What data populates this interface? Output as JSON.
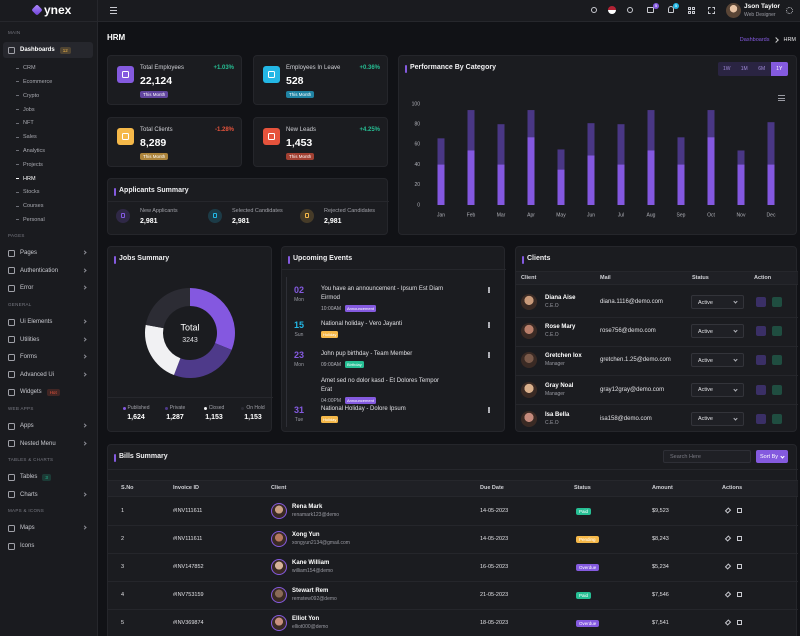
{
  "sidebar": {
    "logo": "ynex",
    "groups": [
      {
        "heading": "MAIN",
        "items": [
          {
            "label": "Dashboards",
            "badge": "12",
            "badge_color": "#f5b849",
            "children": [
              {
                "label": "CRM"
              },
              {
                "label": "Ecommerce"
              },
              {
                "label": "Crypto"
              },
              {
                "label": "Jobs"
              },
              {
                "label": "NFT"
              },
              {
                "label": "Sales"
              },
              {
                "label": "Analytics"
              },
              {
                "label": "Projects"
              },
              {
                "label": "HRM",
                "active": true
              },
              {
                "label": "Stocks"
              },
              {
                "label": "Courses"
              },
              {
                "label": "Personal"
              }
            ]
          }
        ]
      },
      {
        "heading": "PAGES",
        "items": [
          {
            "label": "Pages",
            "submenu": true
          },
          {
            "label": "Authentication",
            "submenu": true
          },
          {
            "label": "Error",
            "submenu": true
          }
        ]
      },
      {
        "heading": "GENERAL",
        "items": [
          {
            "label": "Ui Elements",
            "submenu": true
          },
          {
            "label": "Utilities",
            "submenu": true
          },
          {
            "label": "Forms",
            "submenu": true
          },
          {
            "label": "Advanced Ui",
            "submenu": true
          },
          {
            "label": "Widgets",
            "badge": "Hot",
            "badge_color": "#e6533c"
          }
        ]
      },
      {
        "heading": "WEB APPS",
        "items": [
          {
            "label": "Apps",
            "submenu": true
          },
          {
            "label": "Nested Menu",
            "submenu": true
          }
        ]
      },
      {
        "heading": "TABLES & CHARTS",
        "items": [
          {
            "label": "Tables",
            "badge": "3",
            "badge_color": "#26bf94"
          },
          {
            "label": "Charts",
            "submenu": true
          }
        ]
      },
      {
        "heading": "MAPS & ICONS",
        "items": [
          {
            "label": "Maps",
            "submenu": true
          },
          {
            "label": "Icons"
          }
        ]
      }
    ]
  },
  "header": {
    "user_name": "Json Taylor",
    "user_role": "Web Designer",
    "cart_count": "5",
    "notification_count": "5"
  },
  "page": {
    "title": "HRM",
    "breadcrumb": [
      "Dashboards",
      "HRM"
    ]
  },
  "stats": [
    {
      "title": "Total Employees",
      "value": "22,124",
      "change": "+1.03%",
      "period": "This Month",
      "color": "#845adf"
    },
    {
      "title": "Employees In Leave",
      "value": "528",
      "change": "+0.36%",
      "period": "This Month",
      "color": "#23b7e5"
    },
    {
      "title": "Total Clients",
      "value": "8,289",
      "change": "-1.28%",
      "period": "This Month",
      "color": "#f5b849"
    },
    {
      "title": "New Leads",
      "value": "1,453",
      "change": "+4.25%",
      "period": "This Month",
      "color": "#e6533c"
    }
  ],
  "applicants": {
    "title": "Applicants Summary",
    "items": [
      {
        "label": "New Applicants",
        "value": "2,981",
        "color": "#845adf"
      },
      {
        "label": "Selected Candidates",
        "value": "2,981",
        "color": "#23b7e5"
      },
      {
        "label": "Rejected Candidates",
        "value": "2,981",
        "color": "#f5b849"
      }
    ]
  },
  "chart_data": [
    {
      "type": "bar",
      "title": "Performance By Category",
      "range_buttons": [
        "1W",
        "1M",
        "6M",
        "1Y"
      ],
      "active_range_index": 3,
      "categories": [
        "Jan",
        "Feb",
        "Mar",
        "Apr",
        "May",
        "Jun",
        "Jul",
        "Aug",
        "Sep",
        "Oct",
        "Nov",
        "Dec"
      ],
      "series": [
        {
          "color": "#4a3785",
          "values": [
            66,
            94,
            80,
            94,
            55,
            81,
            80,
            94,
            67,
            94,
            54,
            82
          ]
        },
        {
          "color": "#8458e0",
          "values": [
            40,
            54,
            40,
            67,
            35,
            49,
            40,
            54,
            40,
            67,
            40,
            40
          ]
        }
      ],
      "ylim": [
        0,
        100
      ],
      "yticks": [
        0,
        20,
        40,
        60,
        80,
        100
      ]
    },
    {
      "type": "donut",
      "title": "Jobs Summary",
      "center_label": "Total",
      "center_value": 3243,
      "categories": [
        "Published",
        "Private",
        "Closed",
        "On Hold"
      ],
      "values": [
        1624,
        1287,
        1153,
        1153
      ],
      "value_labels": [
        "1,624",
        "1,287",
        "1,153",
        "1,153"
      ],
      "colors": [
        "#8458e0",
        "#4e3a8a",
        "#f1f1f3",
        "#2c2c34"
      ]
    }
  ],
  "events": {
    "title": "Upcoming Events",
    "items": [
      {
        "day": "02",
        "month": "Mon",
        "color": "#845adf",
        "text": "You have an announcement - Ipsum Est Diam Eirmod",
        "time": "10:00AM",
        "tag": "Announcement",
        "tag_color": "#845adf"
      },
      {
        "day": "15",
        "month": "Sun",
        "color": "#23b7e5",
        "text": "National holiday - Vero Jayanti",
        "tag": "Holiday",
        "tag_color": "#f5b849"
      },
      {
        "day": "23",
        "month": "Mon",
        "color": "#845adf",
        "text": "John pup birthday - Team Member",
        "time": "09:00AM",
        "tag": "Birthday",
        "tag_color": "#26bf94"
      },
      {
        "text": "Amet sed no dolor kasd - Et Dolores Tempor Erat",
        "time": "04:00PM",
        "tag": "Announcement",
        "tag_color": "#845adf"
      },
      {
        "day": "31",
        "month": "Tue",
        "color": "#845adf",
        "text": "National Holiday - Dolore Ipsum",
        "tag": "Holiday",
        "tag_color": "#f5b849"
      }
    ]
  },
  "clients": {
    "title": "Clients",
    "headers": [
      "Client",
      "Mail",
      "Status",
      "Action"
    ],
    "rows": [
      {
        "name": "Diana Aise",
        "role": "C.E.O",
        "mail": "diana.1116@demo.com",
        "status": "Active"
      },
      {
        "name": "Rose Mary",
        "role": "C.E.O",
        "mail": "rose756@demo.com",
        "status": "Active"
      },
      {
        "name": "Gretchen Iox",
        "role": "Manager",
        "mail": "gretchen.1.25@demo.com",
        "status": "Active"
      },
      {
        "name": "Gray Noal",
        "role": "Manager",
        "mail": "gray12gray@demo.com",
        "status": "Active"
      },
      {
        "name": "Isa Bella",
        "role": "C.E.O",
        "mail": "isa158@demo.com",
        "status": "Active"
      }
    ]
  },
  "bills": {
    "title": "Bills Summary",
    "search_placeholder": "Search Here",
    "sort_button": "Sort By",
    "headers": [
      "S.No",
      "Invoice ID",
      "Client",
      "Due Date",
      "Status",
      "Amount",
      "Actions"
    ],
    "rows": [
      {
        "sno": "1",
        "invoice": "#INV111611",
        "name": "Rena Mark",
        "email": "renamark123@demo",
        "due": "14-05-2023",
        "status": "Paid",
        "status_color": "#26bf94",
        "amount": "$9,523"
      },
      {
        "sno": "2",
        "invoice": "#INV111611",
        "name": "Xong Yun",
        "email": "xongyun2134@gmail.com",
        "due": "14-05-2023",
        "status": "Pending",
        "status_color": "#f5b849",
        "amount": "$8,243"
      },
      {
        "sno": "3",
        "invoice": "#INV147852",
        "name": "Kane William",
        "email": "william154@demo",
        "due": "16-05-2023",
        "status": "Overdue",
        "status_color": "#845adf",
        "amount": "$5,234"
      },
      {
        "sno": "4",
        "invoice": "#INV753159",
        "name": "Stewart Rem",
        "email": "remstew092@demo",
        "due": "21-05-2023",
        "status": "Paid",
        "status_color": "#26bf94",
        "amount": "$7,546"
      },
      {
        "sno": "5",
        "invoice": "#INV369874",
        "name": "Elliot Yon",
        "email": "elliot000@demo",
        "due": "18-05-2023",
        "status": "Overdue",
        "status_color": "#845adf",
        "amount": "$7,541"
      }
    ]
  }
}
